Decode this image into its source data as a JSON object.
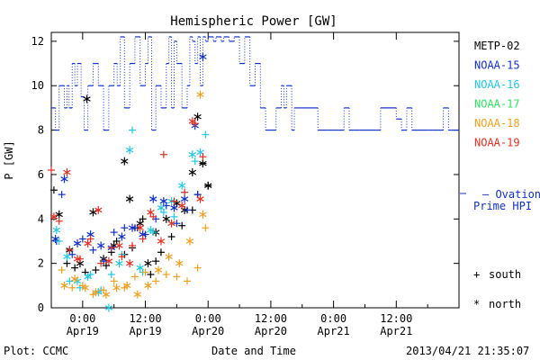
{
  "chart_data": {
    "type": "scatter",
    "title": "Hemispheric Power [GW]",
    "ylabel": "P [GW]",
    "xlabel": "Date and Time",
    "ylim": [
      0,
      12.4
    ],
    "yticks": [
      0,
      2,
      4,
      6,
      8,
      10,
      12
    ],
    "xlim_hours": [
      -6,
      72
    ],
    "xticks": [
      {
        "h": 0,
        "time": "0:00",
        "date": "Apr19"
      },
      {
        "h": 12,
        "time": "12:00",
        "date": "Apr19"
      },
      {
        "h": 24,
        "time": "0:00",
        "date": "Apr20"
      },
      {
        "h": 36,
        "time": "12:00",
        "date": "Apr20"
      },
      {
        "h": 48,
        "time": "0:00",
        "date": "Apr21"
      },
      {
        "h": 60,
        "time": "12:00",
        "date": "Apr21"
      }
    ],
    "grid": false,
    "legend_position": "right",
    "legend": [
      {
        "name": "METP-02",
        "color": "#000000"
      },
      {
        "name": "NOAA-15",
        "color": "#1030c8"
      },
      {
        "name": "NOAA-16",
        "color": "#20c8e0"
      },
      {
        "name": "NOAA-17",
        "color": "#30e060"
      },
      {
        "name": "NOAA-18",
        "color": "#f0a020"
      },
      {
        "name": "NOAA-19",
        "color": "#e03020"
      }
    ],
    "ovation": {
      "label_line1": "– Ovation",
      "label_line2": "Prime HPI",
      "color": "#1030c8",
      "x": [
        -6.0,
        -5.2,
        -4.5,
        -3.5,
        -3.0,
        -2.6,
        -2.0,
        -1.5,
        -1.0,
        -0.3,
        0.3,
        1.0,
        2.0,
        3.0,
        4.0,
        5.0,
        6.0,
        6.6,
        7.2,
        8.0,
        9.0,
        10.0,
        11.0,
        12.0,
        12.5,
        13.2,
        14.0,
        15.0,
        16.0,
        16.5,
        17.0,
        17.5,
        18.0,
        19.0,
        20.0,
        20.5,
        21.0,
        21.5,
        22.0,
        22.5,
        23.0,
        23.5,
        24.0,
        24.5,
        25.0,
        25.5,
        26.0,
        26.5,
        27.0,
        28.0,
        29.0,
        30.0,
        31.0,
        32.0,
        33.0,
        34.0,
        35.0,
        36.0,
        37.0,
        38.0,
        38.5,
        39.0,
        40.0,
        40.5,
        41.0,
        42.0,
        43.0,
        44.0,
        45.0,
        46.0,
        47.0,
        48.0,
        49.0,
        50.0,
        51.0,
        52.0,
        53.0,
        54.0,
        56.0,
        57.0,
        60.0,
        61.0,
        62.0,
        63.0,
        64.0,
        65.0,
        66.0,
        67.0,
        68.0,
        69.0,
        70.0,
        70.5,
        71.0,
        72.0
      ],
      "y": [
        9.0,
        8.0,
        10.0,
        9.0,
        10.0,
        9.0,
        11.0,
        10.0,
        11.0,
        9.5,
        8.0,
        10.0,
        11.0,
        10.0,
        8.0,
        10.0,
        11.0,
        10.0,
        12.2,
        9.0,
        11.0,
        12.2,
        10.0,
        11.0,
        12.2,
        8.0,
        10.0,
        9.0,
        11.0,
        12.2,
        9.0,
        12.0,
        11.0,
        9.0,
        10.0,
        12.2,
        12.0,
        11.0,
        12.2,
        10.0,
        12.2,
        12.0,
        12.2,
        12.2,
        12.0,
        12.2,
        12.2,
        12.0,
        12.2,
        12.0,
        12.2,
        11.0,
        12.2,
        10.0,
        11.0,
        9.0,
        8.0,
        8.0,
        9.0,
        10.0,
        9.0,
        10.0,
        8.0,
        9.0,
        9.0,
        9.0,
        9.0,
        9.0,
        8.0,
        8.0,
        8.0,
        8.0,
        8.0,
        9.0,
        8.0,
        8.0,
        8.0,
        8.0,
        8.0,
        9.0,
        8.5,
        8.0,
        9.0,
        8.0,
        8.0,
        8.0,
        8.0,
        8.0,
        8.0,
        9.0,
        8.0,
        8.0,
        8.0,
        8.0
      ]
    },
    "series": [
      {
        "name": "METP-02",
        "color": "#000000",
        "south": [
          [
            -5.5,
            5.3
          ],
          [
            -3.0,
            2.0
          ],
          [
            -1.5,
            1.8
          ],
          [
            0.5,
            1.6
          ],
          [
            2.5,
            1.7
          ],
          [
            4.5,
            1.9
          ],
          [
            5.5,
            2.5
          ],
          [
            6.5,
            3.0
          ],
          [
            8.0,
            2.4
          ],
          [
            9.5,
            2.7
          ],
          [
            10.5,
            3.6
          ],
          [
            11.5,
            4.0
          ],
          [
            13.0,
            1.5
          ],
          [
            14.0,
            2.1
          ],
          [
            15.0,
            2.5
          ],
          [
            17.0,
            3.2
          ],
          [
            19.0,
            3.7
          ],
          [
            21.0,
            4.4
          ],
          [
            22.0,
            5.1
          ],
          [
            23.0,
            6.5
          ],
          [
            24.0,
            5.5
          ]
        ],
        "north": [
          [
            -4.5,
            4.2
          ],
          [
            -2.5,
            2.6
          ],
          [
            -0.5,
            2.0
          ],
          [
            0.8,
            9.4
          ],
          [
            2.0,
            4.3
          ],
          [
            4.0,
            2.2
          ],
          [
            6.0,
            2.8
          ],
          [
            8.0,
            6.6
          ],
          [
            9.0,
            4.9
          ],
          [
            11.0,
            3.8
          ],
          [
            12.5,
            2.0
          ],
          [
            14.0,
            3.4
          ],
          [
            16.0,
            4.0
          ],
          [
            18.0,
            4.7
          ],
          [
            19.5,
            4.4
          ],
          [
            21.0,
            6.1
          ],
          [
            22.0,
            8.6
          ],
          [
            23.0,
            6.5
          ],
          [
            24.0,
            5.5
          ]
        ]
      },
      {
        "name": "NOAA-15",
        "color": "#1030c8",
        "south": [
          [
            -5.0,
            3.0
          ],
          [
            -4.0,
            5.1
          ],
          [
            -2.0,
            2.4
          ],
          [
            0.0,
            3.1
          ],
          [
            2.0,
            2.6
          ],
          [
            4.0,
            2.1
          ],
          [
            6.0,
            3.4
          ],
          [
            8.0,
            3.6
          ],
          [
            10.0,
            3.6
          ],
          [
            12.0,
            3.3
          ],
          [
            14.0,
            4.0
          ],
          [
            16.0,
            4.6
          ],
          [
            18.0,
            3.8
          ],
          [
            20.0,
            4.4
          ],
          [
            22.0,
            5.1
          ]
        ],
        "north": [
          [
            -5.2,
            3.1
          ],
          [
            -3.5,
            5.8
          ],
          [
            -1.0,
            2.9
          ],
          [
            1.5,
            3.3
          ],
          [
            3.5,
            2.8
          ],
          [
            5.5,
            2.7
          ],
          [
            7.5,
            3.2
          ],
          [
            9.5,
            3.6
          ],
          [
            11.5,
            3.3
          ],
          [
            13.5,
            4.9
          ],
          [
            15.5,
            4.8
          ],
          [
            17.5,
            4.5
          ],
          [
            19.5,
            4.9
          ],
          [
            21.5,
            8.2
          ],
          [
            23.0,
            11.3
          ]
        ]
      },
      {
        "name": "NOAA-16",
        "color": "#20c8e0",
        "south": [
          [
            -4.5,
            3.0
          ],
          [
            -2.5,
            1.2
          ],
          [
            -0.5,
            0.9
          ],
          [
            1.5,
            1.5
          ],
          [
            3.5,
            0.8
          ],
          [
            5.5,
            1.5
          ],
          [
            7.5,
            2.4
          ],
          [
            9.5,
            8.0
          ],
          [
            11.5,
            1.6
          ],
          [
            13.5,
            3.4
          ],
          [
            15.5,
            4.3
          ],
          [
            17.5,
            4.1
          ],
          [
            19.5,
            5.2
          ],
          [
            21.5,
            6.6
          ],
          [
            23.5,
            7.8
          ]
        ],
        "north": [
          [
            -5.0,
            3.5
          ],
          [
            -3.0,
            2.3
          ],
          [
            -1.0,
            1.2
          ],
          [
            1.0,
            1.4
          ],
          [
            3.0,
            0.7
          ],
          [
            5.0,
            0.0
          ],
          [
            7.0,
            2.0
          ],
          [
            9.0,
            7.1
          ],
          [
            11.0,
            1.8
          ],
          [
            13.0,
            3.5
          ],
          [
            15.0,
            4.5
          ],
          [
            17.0,
            4.8
          ],
          [
            19.0,
            5.5
          ],
          [
            21.0,
            6.9
          ],
          [
            22.5,
            7.0
          ]
        ]
      },
      {
        "name": "NOAA-17",
        "color": "#30e060",
        "south": [],
        "north": []
      },
      {
        "name": "NOAA-18",
        "color": "#f0a020",
        "south": [
          [
            -4.0,
            1.7
          ],
          [
            -2.0,
            0.9
          ],
          [
            0.0,
            1.0
          ],
          [
            2.0,
            0.6
          ],
          [
            4.0,
            0.8
          ],
          [
            6.0,
            1.2
          ],
          [
            8.0,
            0.9
          ],
          [
            10.0,
            1.4
          ],
          [
            12.0,
            1.6
          ],
          [
            14.0,
            1.2
          ],
          [
            16.0,
            1.5
          ],
          [
            18.0,
            1.4
          ],
          [
            20.0,
            1.2
          ],
          [
            22.0,
            1.8
          ],
          [
            23.5,
            3.6
          ]
        ],
        "north": [
          [
            -3.5,
            1.0
          ],
          [
            -1.5,
            1.3
          ],
          [
            0.5,
            0.9
          ],
          [
            2.5,
            0.7
          ],
          [
            4.5,
            0.6
          ],
          [
            6.5,
            0.9
          ],
          [
            8.5,
            1.0
          ],
          [
            10.5,
            0.6
          ],
          [
            12.5,
            1.0
          ],
          [
            14.5,
            1.7
          ],
          [
            16.5,
            2.3
          ],
          [
            18.5,
            2.0
          ],
          [
            20.5,
            3.0
          ],
          [
            22.5,
            9.6
          ],
          [
            23.0,
            4.2
          ]
        ]
      },
      {
        "name": "NOAA-19",
        "color": "#e03020",
        "south": [
          [
            -6.0,
            6.2
          ],
          [
            -4.5,
            3.9
          ],
          [
            -2.5,
            2.6
          ],
          [
            -0.5,
            2.2
          ],
          [
            1.5,
            3.1
          ],
          [
            3.5,
            2.0
          ],
          [
            5.5,
            2.7
          ],
          [
            7.5,
            2.3
          ],
          [
            9.5,
            2.8
          ],
          [
            11.5,
            3.1
          ],
          [
            13.5,
            4.1
          ],
          [
            15.5,
            6.9
          ],
          [
            17.5,
            4.8
          ],
          [
            19.5,
            5.2
          ],
          [
            21.5,
            8.3
          ],
          [
            23.0,
            6.8
          ]
        ],
        "north": [
          [
            -5.5,
            4.1
          ],
          [
            -3.0,
            6.1
          ],
          [
            -1.0,
            2.2
          ],
          [
            1.0,
            2.9
          ],
          [
            3.0,
            4.4
          ],
          [
            5.0,
            2.1
          ],
          [
            7.0,
            2.8
          ],
          [
            9.0,
            2.0
          ],
          [
            11.0,
            3.6
          ],
          [
            13.0,
            4.3
          ],
          [
            15.0,
            3.0
          ],
          [
            17.0,
            3.8
          ],
          [
            19.0,
            4.6
          ],
          [
            21.0,
            8.4
          ],
          [
            22.5,
            4.9
          ]
        ]
      }
    ],
    "marker_legend": {
      "south_symbol": "+",
      "south_label": "south",
      "north_symbol": "*",
      "north_label": "north"
    }
  },
  "footer": {
    "left": "Plot: CCMC",
    "right": "2013/04/21 21:35:07"
  }
}
